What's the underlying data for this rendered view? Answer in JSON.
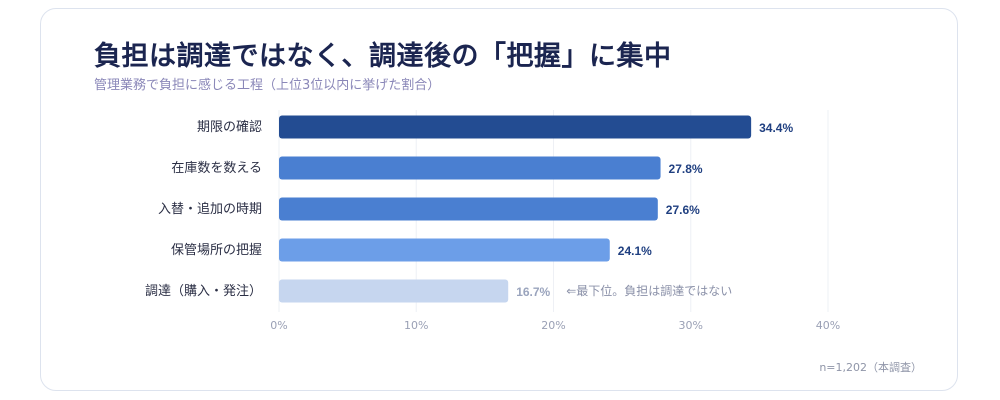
{
  "title": "負担は調達ではなく、調達後の「把握」に集中",
  "subtitle": "管理業務で負担に感じる工程（上位3位以内に挙げた割合）",
  "footnote": "n=1,202（本調査）",
  "chart_data": {
    "type": "bar",
    "orientation": "horizontal",
    "categories": [
      "期限の確認",
      "在庫数を数える",
      "入替・追加の時期",
      "保管場所の把握",
      "調達（購入・発注）"
    ],
    "values": [
      34.4,
      27.8,
      27.6,
      24.1,
      16.7
    ],
    "value_labels": [
      "34.4%",
      "27.8%",
      "27.6%",
      "24.1%",
      "16.7%"
    ],
    "bar_colors": [
      "#234c92",
      "#4a7fd1",
      "#4a7fd1",
      "#6c9ee8",
      "#c6d6ef"
    ],
    "value_label_colors": [
      "#1f3f80",
      "#1f3f80",
      "#1f3f80",
      "#1f3f80",
      "#9aa4bd"
    ],
    "annotations": [
      {
        "category": "調達（購入・発注）",
        "text": "⇐最下位。負担は調達ではない"
      }
    ],
    "xlim": [
      0,
      40
    ],
    "xticks": [
      0,
      10,
      20,
      30,
      40
    ],
    "xtick_labels": [
      "0%",
      "10%",
      "20%",
      "30%",
      "40%"
    ],
    "grid": "vertical"
  }
}
